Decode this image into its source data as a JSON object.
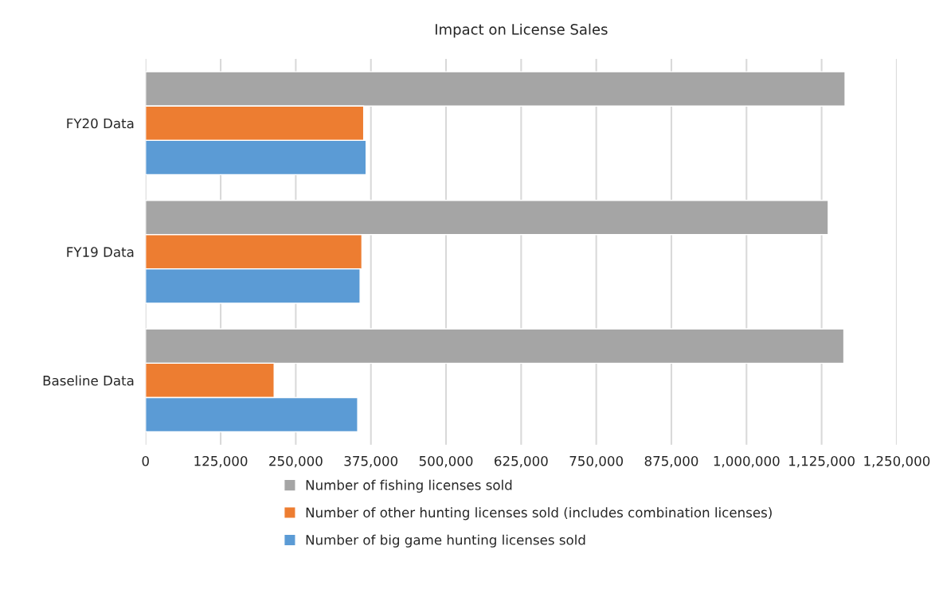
{
  "chart_data": {
    "type": "bar",
    "orientation": "horizontal",
    "title": "Impact on License Sales",
    "categories": [
      "FY20 Data",
      "FY19 Data",
      "Baseline Data"
    ],
    "series": [
      {
        "name": "Number of fishing licenses sold",
        "color": "#a5a5a5",
        "values": [
          1164000,
          1136000,
          1162000
        ]
      },
      {
        "name": "Number of other hunting licenses sold (includes combination licenses)",
        "color": "#ed7d31",
        "values": [
          363000,
          360000,
          214000
        ]
      },
      {
        "name": "Number of big game hunting licenses sold",
        "color": "#5b9bd5",
        "values": [
          367000,
          357000,
          353000
        ]
      }
    ],
    "xlim": [
      0,
      1250000
    ],
    "xticks": [
      {
        "value": 0,
        "label": "0"
      },
      {
        "value": 125000,
        "label": "125,000"
      },
      {
        "value": 250000,
        "label": "250,000"
      },
      {
        "value": 375000,
        "label": "375,000"
      },
      {
        "value": 500000,
        "label": "500,000"
      },
      {
        "value": 625000,
        "label": "625,000"
      },
      {
        "value": 750000,
        "label": "750,000"
      },
      {
        "value": 875000,
        "label": "875,000"
      },
      {
        "value": 1000000,
        "label": "1,000,000"
      },
      {
        "value": 1125000,
        "label": "1,125,000"
      },
      {
        "value": 1250000,
        "label": "1,250,000"
      }
    ],
    "grid": "x",
    "legend": "bottom"
  }
}
